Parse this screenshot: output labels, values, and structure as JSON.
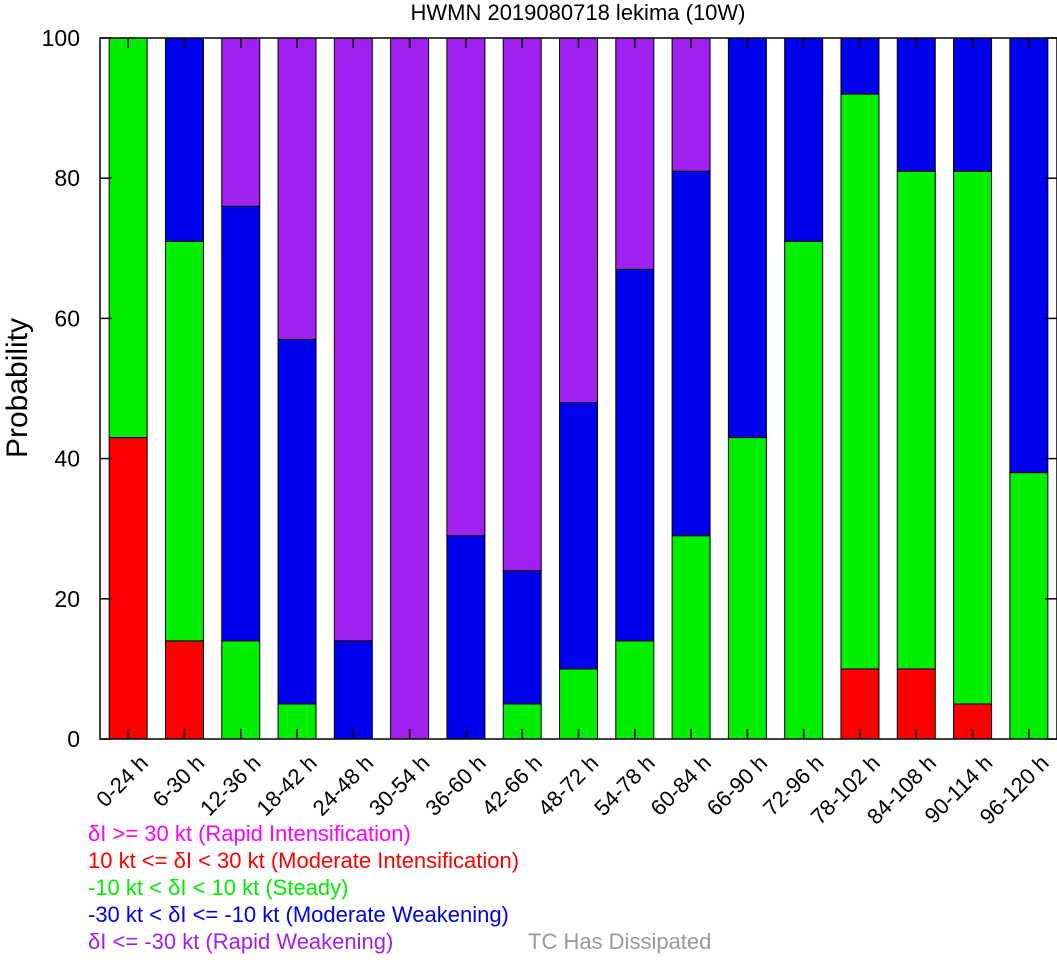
{
  "chart_data": {
    "type": "bar",
    "stacked": true,
    "title": "HWMN 2019080718 lekima (10W)",
    "ylabel": "Probability",
    "xlabel": "",
    "ylim": [
      0,
      100
    ],
    "yticks": [
      0,
      20,
      40,
      60,
      80,
      100
    ],
    "grid": false,
    "categories": [
      "0-24 h",
      "6-30 h",
      "12-36 h",
      "18-42 h",
      "24-48 h",
      "30-54 h",
      "36-60 h",
      "42-66 h",
      "48-72 h",
      "54-78 h",
      "60-84 h",
      "66-90 h",
      "72-96 h",
      "78-102 h",
      "84-108 h",
      "90-114 h",
      "96-120 h"
    ],
    "series": [
      {
        "key": "ri",
        "color": "#ff00ff",
        "values": [
          0,
          0,
          0,
          0,
          0,
          0,
          0,
          0,
          0,
          0,
          0,
          0,
          0,
          0,
          0,
          0,
          0
        ]
      },
      {
        "key": "mi",
        "color": "#ff0000",
        "values": [
          43,
          14,
          0,
          0,
          0,
          0,
          0,
          0,
          0,
          0,
          0,
          0,
          0,
          10,
          10,
          5,
          0
        ]
      },
      {
        "key": "steady",
        "color": "#00ee00",
        "values": [
          57,
          57,
          14,
          5,
          0,
          0,
          0,
          5,
          10,
          14,
          29,
          43,
          71,
          82,
          71,
          76,
          38
        ]
      },
      {
        "key": "mw",
        "color": "#0000ee",
        "values": [
          0,
          29,
          62,
          52,
          14,
          0,
          29,
          19,
          38,
          53,
          52,
          57,
          29,
          8,
          19,
          19,
          62
        ]
      },
      {
        "key": "rw",
        "color": "#a020f0",
        "values": [
          0,
          0,
          24,
          43,
          86,
          100,
          71,
          76,
          52,
          33,
          19,
          0,
          0,
          0,
          0,
          0,
          0
        ]
      }
    ],
    "legend": {
      "placement": "bottom-left",
      "entries": [
        {
          "text": "δI >= 30 kt (Rapid Intensification)",
          "color": "#ff00ff"
        },
        {
          "text": "10 kt <= δI < 30 kt (Moderate Intensification)",
          "color": "#ff0000"
        },
        {
          "text": "-10 kt < δI < 10 kt (Steady)",
          "color": "#00ee00"
        },
        {
          "text": "-30 kt < δI <= -10 kt (Moderate Weakening)",
          "color": "#0000ee"
        },
        {
          "text": "δI <= -30 kt (Rapid Weakening)",
          "color": "#a020f0"
        }
      ],
      "dissipated": {
        "text": "TC Has Dissipated",
        "color": "#999999"
      }
    }
  }
}
